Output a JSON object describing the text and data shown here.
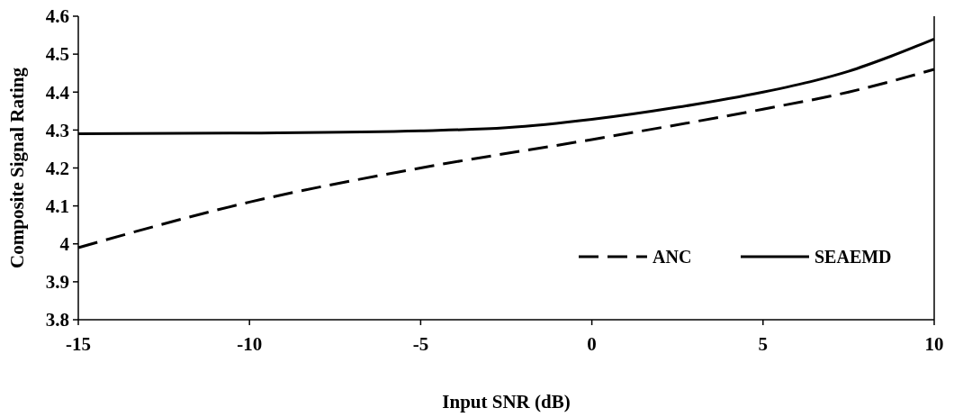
{
  "chart_data": {
    "type": "line",
    "xlabel": "Input SNR (dB)",
    "ylabel": "Composite Signal Rating",
    "xlim": [
      -15,
      10
    ],
    "xticks": [
      -15,
      -10,
      -5,
      0,
      5,
      10
    ],
    "ylim": [
      3.8,
      4.6
    ],
    "yticks": [
      3.8,
      3.9,
      4,
      4.1,
      4.2,
      4.3,
      4.4,
      4.5,
      4.6
    ],
    "legend": "bottom right",
    "marker": "none",
    "series": [
      {
        "name": "ANC",
        "color": "#000000",
        "line_style": "dashed",
        "x": [
          -15,
          -10,
          -5,
          0,
          5,
          7.5,
          10
        ],
        "values": [
          3.99,
          4.11,
          4.2,
          4.275,
          4.355,
          4.4,
          4.46
        ]
      },
      {
        "name": "SEAEMD",
        "color": "#000000",
        "line_style": "solid",
        "x": [
          -15,
          -10,
          -5,
          -2.5,
          0,
          2.5,
          5,
          6.5,
          7.5,
          8.75,
          10
        ],
        "values": [
          4.29,
          4.292,
          4.298,
          4.306,
          4.328,
          4.36,
          4.4,
          4.43,
          4.455,
          4.495,
          4.54
        ]
      }
    ]
  }
}
